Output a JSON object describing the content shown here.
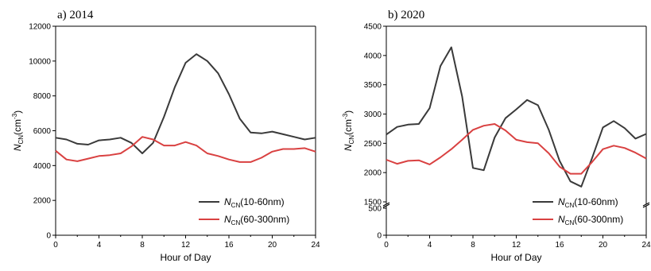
{
  "figure": {
    "colors": {
      "series_black": "#3a3a3a",
      "series_red": "#d94141",
      "axis": "#000000"
    }
  },
  "chart_data": [
    {
      "type": "line",
      "panel_label": "a) 2014",
      "xlabel": "Hour of Day",
      "ylabel_main": "N",
      "ylabel_sub": "CN",
      "ylabel_unit_open": "(cm",
      "ylabel_unit_exp": "-3",
      "ylabel_unit_close": ")",
      "xlim": [
        0,
        24
      ],
      "ylim": [
        0,
        12000
      ],
      "xticks": [
        0,
        4,
        8,
        12,
        16,
        20,
        24
      ],
      "yticks": [
        0,
        2000,
        4000,
        6000,
        8000,
        10000,
        12000
      ],
      "grid": false,
      "legend_position": "bottom-right",
      "series": [
        {
          "name": "N_CN(10-60nm)",
          "legend_main": "N",
          "legend_sub": "CN",
          "legend_rest": "(10-60nm)",
          "color": "#3a3a3a",
          "x": [
            0,
            1,
            2,
            3,
            4,
            5,
            6,
            7,
            8,
            9,
            10,
            11,
            12,
            13,
            14,
            15,
            16,
            17,
            18,
            19,
            20,
            21,
            22,
            23,
            24
          ],
          "y": [
            5600,
            5500,
            5250,
            5200,
            5450,
            5500,
            5600,
            5300,
            4700,
            5300,
            6800,
            8500,
            9900,
            10400,
            10000,
            9300,
            8100,
            6700,
            5900,
            5850,
            5950,
            5800,
            5650,
            5500,
            5600
          ]
        },
        {
          "name": "N_CN(60-300nm)",
          "legend_main": "N",
          "legend_sub": "CN",
          "legend_rest": "(60-300nm)",
          "color": "#d94141",
          "x": [
            0,
            1,
            2,
            3,
            4,
            5,
            6,
            7,
            8,
            9,
            10,
            11,
            12,
            13,
            14,
            15,
            16,
            17,
            18,
            19,
            20,
            21,
            22,
            23,
            24
          ],
          "y": [
            4850,
            4350,
            4250,
            4400,
            4550,
            4600,
            4700,
            5100,
            5650,
            5500,
            5150,
            5150,
            5350,
            5150,
            4700,
            4550,
            4350,
            4200,
            4200,
            4450,
            4800,
            4950,
            4950,
            5000,
            4800
          ]
        }
      ]
    },
    {
      "type": "line",
      "panel_label": "b) 2020",
      "xlabel": "Hour of Day",
      "ylabel_main": "N",
      "ylabel_sub": "CN",
      "ylabel_unit_open": "(cm",
      "ylabel_unit_exp": "-3",
      "ylabel_unit_close": ")",
      "xlim": [
        0,
        24
      ],
      "ylim": [
        0,
        4500
      ],
      "axis_break": {
        "from": 500,
        "to": 1500
      },
      "xticks": [
        0,
        4,
        8,
        12,
        16,
        20,
        24
      ],
      "yticks": [
        0,
        500,
        1500,
        2000,
        2500,
        3000,
        3500,
        4000,
        4500
      ],
      "grid": false,
      "legend_position": "bottom-right",
      "series": [
        {
          "name": "N_CN(10-60nm)",
          "legend_main": "N",
          "legend_sub": "CN",
          "legend_rest": "(10-60nm)",
          "color": "#3a3a3a",
          "x": [
            0,
            1,
            2,
            3,
            4,
            5,
            6,
            7,
            8,
            9,
            10,
            11,
            12,
            13,
            14,
            15,
            16,
            17,
            18,
            19,
            20,
            21,
            22,
            23,
            24
          ],
          "y": [
            2650,
            2780,
            2820,
            2830,
            3100,
            3820,
            4140,
            3300,
            2080,
            2040,
            2600,
            2930,
            3080,
            3240,
            3150,
            2730,
            2200,
            1850,
            1760,
            2250,
            2770,
            2880,
            2760,
            2580,
            2660
          ]
        },
        {
          "name": "N_CN(60-300nm)",
          "legend_main": "N",
          "legend_sub": "CN",
          "legend_rest": "(60-300nm)",
          "color": "#d94141",
          "x": [
            0,
            1,
            2,
            3,
            4,
            5,
            6,
            7,
            8,
            9,
            10,
            11,
            12,
            13,
            14,
            15,
            16,
            17,
            18,
            19,
            20,
            21,
            22,
            23,
            24
          ],
          "y": [
            2220,
            2150,
            2200,
            2210,
            2140,
            2260,
            2400,
            2560,
            2730,
            2800,
            2830,
            2720,
            2560,
            2520,
            2500,
            2330,
            2100,
            1980,
            1980,
            2180,
            2400,
            2460,
            2420,
            2340,
            2240
          ]
        }
      ]
    }
  ]
}
